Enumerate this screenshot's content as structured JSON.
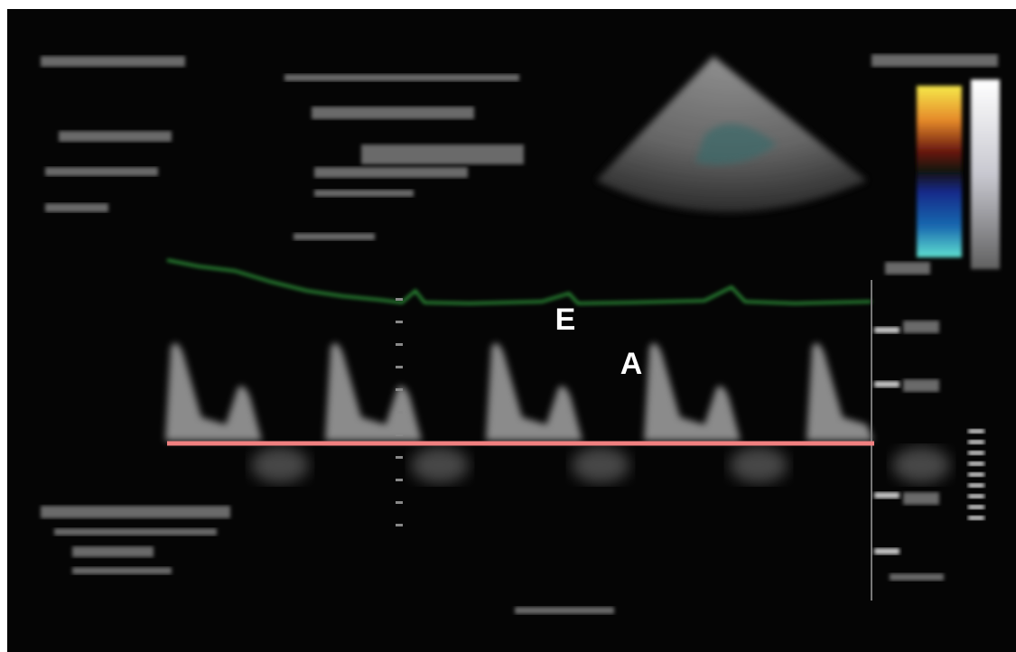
{
  "annotations": [
    {
      "label": "E"
    },
    {
      "label": "A"
    }
  ]
}
